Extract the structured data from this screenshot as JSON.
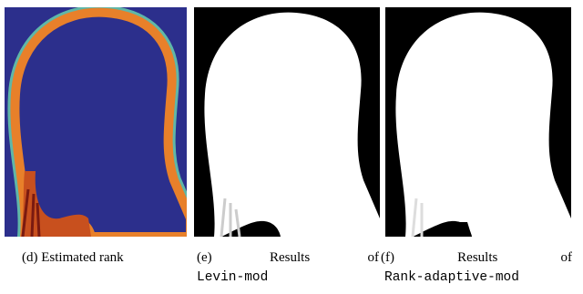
{
  "captions": [
    {
      "label": "(d)",
      "text": "Estimated rank"
    },
    {
      "label": "(e)",
      "text": "Results of",
      "code": "Levin-mod"
    },
    {
      "label": "(f)",
      "text": "Results of",
      "code": "Rank-adaptive-mod"
    }
  ]
}
